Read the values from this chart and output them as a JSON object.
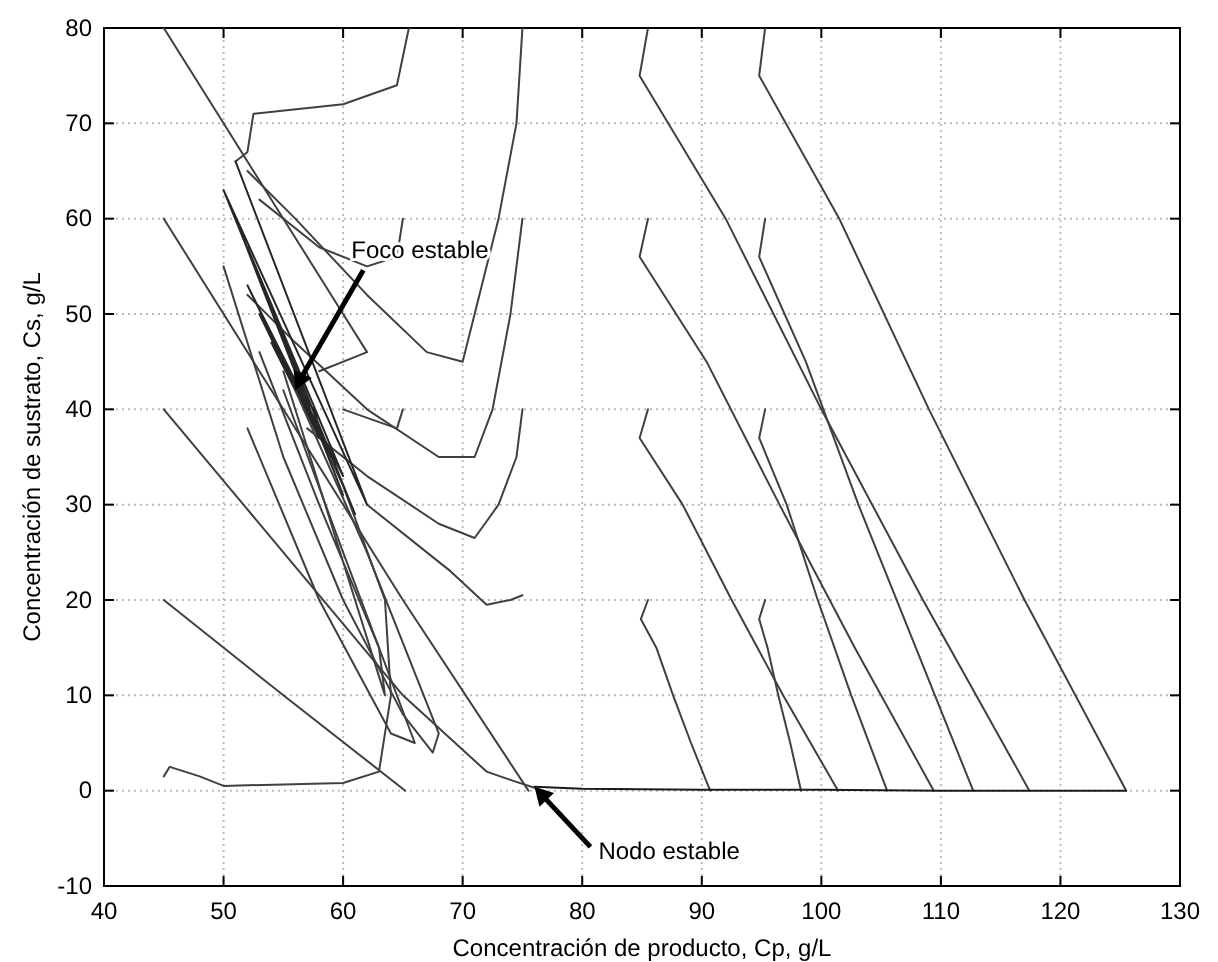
{
  "chart_data": {
    "type": "line",
    "xlabel": "Concentración de producto, Cp, g/L",
    "ylabel": "Concentración de sustrato, Cs, g/L",
    "xlim": [
      40,
      130
    ],
    "xticks": [
      40,
      50,
      60,
      70,
      80,
      90,
      100,
      110,
      120,
      130
    ],
    "ylim": [
      -10,
      80
    ],
    "yticks": [
      -10,
      0,
      10,
      20,
      30,
      40,
      50,
      60,
      70,
      80
    ],
    "grid": true,
    "marker": "none",
    "line_style": "solid",
    "annotations": [
      {
        "text": "Foco estable",
        "x": 56,
        "y": 42
      },
      {
        "text": "Nodo estable",
        "x": 76,
        "y": 0.4
      }
    ],
    "series": [
      {
        "color": "#404040",
        "x": [
          85.5,
          84.9,
          86.2,
          87.6,
          89.1,
          90.7
        ],
        "values": [
          20,
          18,
          15,
          10,
          5,
          0
        ]
      },
      {
        "color": "#404040",
        "x": [
          95.3,
          94.8,
          95.5,
          96.4,
          97.4,
          98.3
        ],
        "values": [
          20,
          18,
          15,
          10,
          5,
          0
        ]
      },
      {
        "color": "#404040",
        "x": [
          85.5,
          84.8,
          88.4,
          92.5,
          96.8,
          101.4
        ],
        "values": [
          40,
          37,
          30,
          20,
          10,
          0
        ]
      },
      {
        "color": "#404040",
        "x": [
          95.3,
          94.8,
          97.1,
          99.7,
          102.5,
          105.5
        ],
        "values": [
          40,
          37,
          30,
          20,
          10,
          0
        ]
      },
      {
        "color": "#404040",
        "x": [
          85.5,
          84.8,
          90.4,
          96.5,
          102.8,
          109.4
        ],
        "values": [
          60,
          56,
          45,
          30,
          15,
          0
        ]
      },
      {
        "color": "#404040",
        "x": [
          95.3,
          94.8,
          98.7,
          103.1,
          107.9,
          112.7
        ],
        "values": [
          60,
          56,
          45,
          30,
          15,
          0
        ]
      },
      {
        "color": "#404040",
        "x": [
          85.5,
          84.8,
          92,
          100,
          108.5,
          117.4
        ],
        "values": [
          80,
          75,
          60,
          40,
          20,
          0
        ]
      },
      {
        "color": "#404040",
        "x": [
          95.3,
          94.8,
          101.5,
          109,
          117,
          125.5
        ],
        "values": [
          80,
          75,
          60,
          40,
          20,
          0
        ]
      },
      {
        "color": "#1a1a1a",
        "x": [
          76,
          80,
          90,
          100,
          110,
          117.4,
          125.5
        ],
        "values": [
          0.4,
          0.2,
          0.1,
          0.1,
          0,
          0,
          0
        ]
      },
      {
        "color": "#404040",
        "x": [
          45,
          50,
          55,
          60,
          62,
          58
        ],
        "values": [
          80,
          70,
          60,
          50,
          46,
          44
        ]
      },
      {
        "color": "#404040",
        "x": [
          45,
          55,
          65,
          75.5
        ],
        "values": [
          60,
          40,
          20,
          0
        ]
      },
      {
        "color": "#404040",
        "x": [
          45,
          55,
          65,
          72,
          74.3,
          76
        ],
        "values": [
          40,
          25,
          10,
          2,
          1,
          0.3
        ]
      },
      {
        "color": "#404040",
        "x": [
          45,
          55,
          65.2
        ],
        "values": [
          20,
          10,
          0
        ]
      },
      {
        "color": "#404040",
        "x": [
          45,
          45.5,
          48,
          50,
          60,
          63,
          64,
          63.5,
          60,
          57
        ],
        "values": [
          1.5,
          2.5,
          1.5,
          0.5,
          0.8,
          2,
          10,
          20,
          32,
          40
        ]
      },
      {
        "color": "#404040",
        "x": [
          75,
          74.5,
          73,
          71,
          70,
          67,
          62,
          56,
          52
        ],
        "values": [
          80,
          70,
          60,
          50,
          45,
          46,
          52,
          60,
          65
        ]
      },
      {
        "color": "#404040",
        "x": [
          75,
          74,
          72.5,
          71,
          68,
          62,
          56,
          52
        ],
        "values": [
          60,
          50,
          40,
          35,
          35,
          40,
          47,
          52
        ]
      },
      {
        "color": "#404040",
        "x": [
          75,
          74.5,
          73,
          71,
          68,
          62,
          57
        ],
        "values": [
          40,
          35,
          30,
          26.5,
          28,
          33,
          38
        ]
      },
      {
        "color": "#404040",
        "x": [
          75,
          74,
          72,
          69,
          62
        ],
        "values": [
          20.5,
          20,
          19.5,
          23,
          30
        ]
      },
      {
        "color": "#404040",
        "x": [
          65.5,
          64.5,
          60,
          52.5,
          52,
          51
        ],
        "values": [
          80,
          74,
          72,
          71,
          67,
          66
        ]
      },
      {
        "color": "#404040",
        "x": [
          65,
          64.5,
          62,
          58,
          53
        ],
        "values": [
          60,
          56,
          55,
          57,
          62
        ]
      },
      {
        "color": "#404040",
        "x": [
          65,
          64.5,
          60
        ],
        "values": [
          40,
          38,
          40
        ]
      },
      {
        "color": "#262626",
        "x": [
          51,
          62,
          50,
          61,
          51,
          60,
          52,
          60,
          52,
          59,
          53,
          58,
          54,
          58,
          55,
          57,
          56
        ],
        "values": [
          66,
          30,
          63,
          29,
          60,
          31,
          57,
          33,
          53,
          35,
          50,
          37,
          47,
          39,
          45,
          41,
          43
        ]
      },
      {
        "color": "#404040",
        "x": [
          50,
          55,
          60,
          65,
          67.5,
          68,
          62,
          56
        ],
        "values": [
          55,
          35,
          20,
          8,
          4,
          6,
          25,
          42
        ]
      },
      {
        "color": "#404040",
        "x": [
          52,
          58,
          64,
          66,
          60,
          55
        ],
        "values": [
          38,
          20,
          6,
          5,
          25,
          42
        ]
      },
      {
        "color": "#404040",
        "x": [
          53,
          58,
          63,
          63.5,
          59,
          55
        ],
        "values": [
          46,
          30,
          15,
          10,
          28,
          44
        ]
      }
    ]
  }
}
